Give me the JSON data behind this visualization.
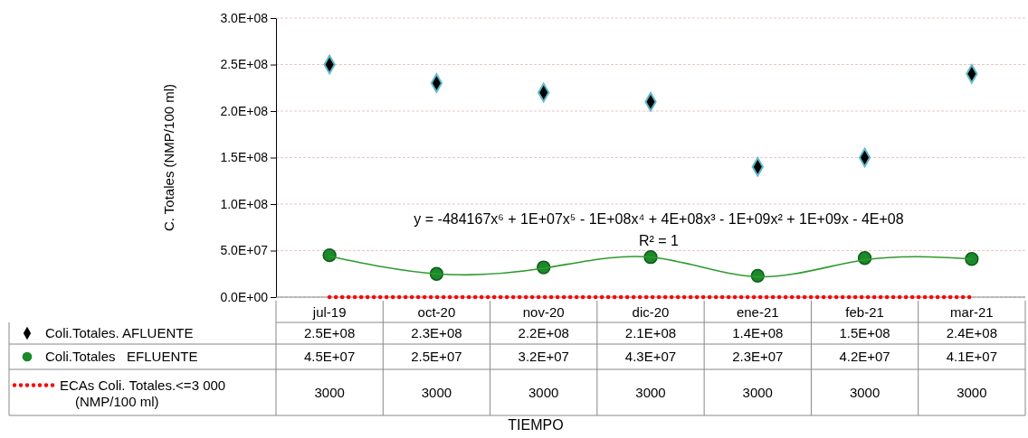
{
  "chart_data": {
    "type": "line",
    "ylabel": "C. Totales (NMP/100 ml)",
    "categories": [
      "jul-19",
      "oct-20",
      "nov-20",
      "dic-20",
      "ene-21",
      "feb-21",
      "mar-21"
    ],
    "series": [
      {
        "name": "Coli.Totales. AFLUENTE",
        "type": "scatter",
        "marker": "diamond",
        "color": "#000000",
        "values": [
          250000000,
          230000000,
          220000000,
          210000000,
          140000000,
          150000000,
          240000000
        ],
        "value_labels": [
          "2.5E+08",
          "2.3E+08",
          "2.2E+08",
          "2.1E+08",
          "1.4E+08",
          "1.5E+08",
          "2.4E+08"
        ]
      },
      {
        "name": "Coli.Totales   EFLUENTE",
        "type": "scatter",
        "marker": "circle",
        "color": "#1a8a2a",
        "values": [
          45000000,
          25000000,
          32000000,
          43000000,
          23000000,
          42000000,
          41000000
        ],
        "value_labels": [
          "4.5E+07",
          "2.5E+07",
          "3.2E+07",
          "4.3E+07",
          "2.3E+07",
          "4.2E+07",
          "4.1E+07"
        ]
      },
      {
        "name": "ECAs Coli. Totales.<=3 000 (NMP/100 ml)",
        "type": "line",
        "line_style": "dotted",
        "marker": "none",
        "color": "#ff0000",
        "values": [
          3000,
          3000,
          3000,
          3000,
          3000,
          3000,
          3000
        ],
        "value_labels": [
          "3000",
          "3000",
          "3000",
          "3000",
          "3000",
          "3000",
          "3000"
        ]
      },
      {
        "type": "line",
        "line_style": "solid",
        "marker": "none",
        "color": "#2e9a2e",
        "values": [
          44000000,
          25000000,
          31000000,
          43000000,
          22000000,
          40000000,
          41000000
        ]
      }
    ],
    "ylim": [
      0,
      300000000
    ],
    "yticks": [
      {
        "value": 0,
        "label": "0.0E+00"
      },
      {
        "value": 50000000,
        "label": "5.0E+07"
      },
      {
        "value": 100000000,
        "label": "1.0E+08"
      },
      {
        "value": 150000000,
        "label": "1.5E+08"
      },
      {
        "value": 200000000,
        "label": "2.0E+08"
      },
      {
        "value": 250000000,
        "label": "2.5E+08"
      },
      {
        "value": 300000000,
        "label": "3.0E+08"
      }
    ],
    "grid": "y",
    "legend": "bottom left",
    "annotations": [
      "y = -484167x⁶ + 1E+07x⁵ - 1E+08x⁴ + 4E+08x³ - 1E+09x² + 1E+09x - 4E+08",
      "R² = 1",
      "TIEMPO"
    ]
  }
}
